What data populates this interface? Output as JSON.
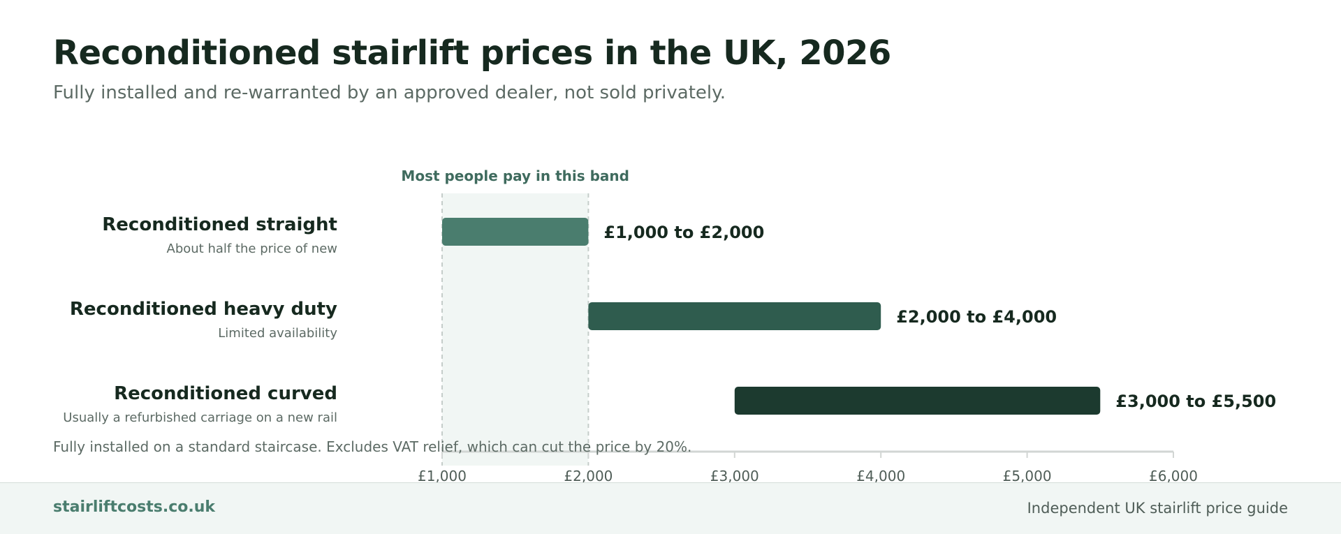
{
  "title": "Reconditioned stairlift prices in the UK, 2026",
  "subtitle": "Fully installed and re-warranted by an approved dealer, not sold privately.",
  "footnote": "Fully installed on a standard staircase. Excludes VAT relief, which can cut the price by 20%.",
  "footer": {
    "brand": "stairliftcosts.co.uk",
    "tagline": "Independent UK stairlift price guide"
  },
  "colors": {
    "straight": "#4a7d6e",
    "heavy_duty": "#2f5c4e",
    "curved": "#1c3a2f",
    "band": "#f1f6f4",
    "axis": "#d2d6d4"
  },
  "chart_data": {
    "type": "bar",
    "orientation": "horizontal-range",
    "xlim": [
      1000,
      6000
    ],
    "xticks": [
      1000,
      2000,
      3000,
      4000,
      5000,
      6000
    ],
    "xtick_labels": [
      "£1,000",
      "£2,000",
      "£3,000",
      "£4,000",
      "£5,000",
      "£6,000"
    ],
    "highlight_band": {
      "from": 1000,
      "to": 2000,
      "label": "Most people pay in this band"
    },
    "categories": [
      {
        "name": "Reconditioned straight",
        "note": "About half the price of new",
        "min": 1000,
        "max": 2000,
        "label": "£1,000 to £2,000",
        "color": "#4a7d6e"
      },
      {
        "name": "Reconditioned heavy duty",
        "note": "Limited availability",
        "min": 2000,
        "max": 4000,
        "label": "£2,000 to £4,000",
        "color": "#2f5c4e"
      },
      {
        "name": "Reconditioned curved",
        "note": "Usually a refurbished carriage on a new rail",
        "min": 3000,
        "max": 5500,
        "label": "£3,000 to £5,500",
        "color": "#1c3a2f"
      }
    ]
  }
}
